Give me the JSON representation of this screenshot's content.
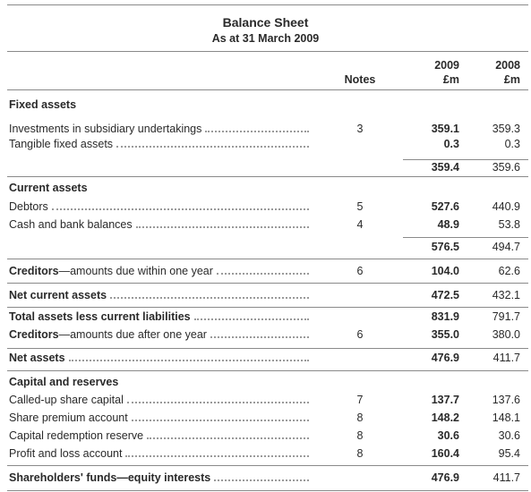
{
  "title": "Balance Sheet",
  "subtitle": "As at 31 March 2009",
  "columns": {
    "notes": "Notes",
    "years": [
      "2009",
      "2008"
    ],
    "units": [
      "£m",
      "£m"
    ]
  },
  "rows": [
    {
      "heading": "Fixed assets"
    },
    {
      "label": "Investments in subsidiary undertakings",
      "note": "3",
      "values": [
        "359.1",
        "359.3"
      ]
    },
    {
      "label": "Tangible fixed assets",
      "values": [
        "0.3",
        "0.3"
      ]
    },
    {
      "values": [
        "359.4",
        "359.6"
      ]
    },
    {
      "heading": "Current assets"
    },
    {
      "label": "Debtors",
      "note": "5",
      "values": [
        "527.6",
        "440.9"
      ]
    },
    {
      "label": "Cash and bank balances",
      "note": "4",
      "values": [
        "48.9",
        "53.8"
      ]
    },
    {
      "values": [
        "576.5",
        "494.7"
      ]
    },
    {
      "label_strong": "Creditors",
      "label": "—amounts due within one year",
      "note": "6",
      "values": [
        "104.0",
        "62.6"
      ]
    },
    {
      "label_strong": "Net current assets",
      "values": [
        "472.5",
        "432.1"
      ]
    },
    {
      "label_strong": "Total assets less current liabilities",
      "values": [
        "831.9",
        "791.7"
      ]
    },
    {
      "label_strong": "Creditors",
      "label": "—amounts due after one year",
      "note": "6",
      "values": [
        "355.0",
        "380.0"
      ]
    },
    {
      "label_strong": "Net assets",
      "values": [
        "476.9",
        "411.7"
      ]
    },
    {
      "heading": "Capital and reserves"
    },
    {
      "label": "Called-up share capital",
      "note": "7",
      "values": [
        "137.7",
        "137.6"
      ]
    },
    {
      "label": "Share premium account",
      "note": "8",
      "values": [
        "148.2",
        "148.1"
      ]
    },
    {
      "label": "Capital redemption reserve",
      "note": "8",
      "values": [
        "30.6",
        "30.6"
      ]
    },
    {
      "label": "Profit and loss account",
      "note": "8",
      "values": [
        "160.4",
        "95.4"
      ]
    },
    {
      "label_strong": "Shareholders' funds—equity interests",
      "values": [
        "476.9",
        "411.7"
      ]
    }
  ]
}
